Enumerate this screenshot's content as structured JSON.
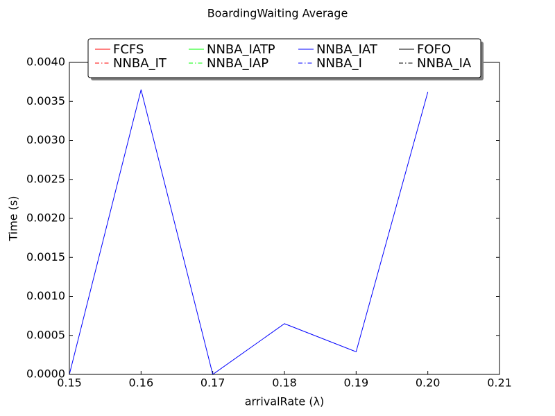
{
  "chart_data": {
    "type": "line",
    "title": "BoardingWaiting Average",
    "xlabel": "arrivalRate (λ)",
    "ylabel": "Time (s)",
    "x": [
      0.15,
      0.16,
      0.17,
      0.18,
      0.19,
      0.2
    ],
    "series": [
      {
        "name": "FCFS",
        "color": "#ff0000",
        "linestyle": "solid",
        "values": [
          null,
          null,
          null,
          null,
          null,
          null
        ]
      },
      {
        "name": "NNBA_IT",
        "color": "#ff0000",
        "linestyle": "dashdot",
        "values": [
          null,
          null,
          null,
          null,
          null,
          null
        ]
      },
      {
        "name": "NNBA_IATP",
        "color": "#00ff00",
        "linestyle": "solid",
        "values": [
          null,
          null,
          null,
          null,
          null,
          null
        ]
      },
      {
        "name": "NNBA_IAP",
        "color": "#00ff00",
        "linestyle": "dashdot",
        "values": [
          null,
          null,
          null,
          null,
          null,
          null
        ]
      },
      {
        "name": "NNBA_IAT",
        "color": "#0000ff",
        "linestyle": "solid",
        "values": [
          0,
          0.00365,
          0,
          0.00065,
          0.00029,
          0.00362
        ]
      },
      {
        "name": "NNBA_I",
        "color": "#0000ff",
        "linestyle": "dashdot",
        "values": [
          null,
          null,
          null,
          null,
          null,
          null
        ]
      },
      {
        "name": "FOFO",
        "color": "#000000",
        "linestyle": "solid",
        "values": [
          null,
          null,
          null,
          null,
          null,
          null
        ]
      },
      {
        "name": "NNBA_IA",
        "color": "#000000",
        "linestyle": "dashdot",
        "values": [
          null,
          null,
          null,
          null,
          null,
          null
        ]
      }
    ],
    "xlim": [
      0.15,
      0.21
    ],
    "xticks": [
      0.15,
      0.16,
      0.17,
      0.18,
      0.19,
      {
        "value": 0.2,
        "label": "0.20"
      },
      0.21
    ],
    "ylim": [
      0,
      0.004
    ],
    "yticks": [
      {
        "value": 0,
        "label": "0.0000"
      },
      {
        "value": 0.0005,
        "label": "0.0005"
      },
      {
        "value": 0.001,
        "label": "0.0010"
      },
      {
        "value": 0.0015,
        "label": "0.0015"
      },
      {
        "value": 0.002,
        "label": "0.0020"
      },
      {
        "value": 0.0025,
        "label": "0.0025"
      },
      {
        "value": 0.003,
        "label": "0.0030"
      },
      {
        "value": 0.0035,
        "label": "0.0035"
      },
      {
        "value": 0.004,
        "label": "0.0040"
      }
    ],
    "legend": "upper center",
    "grid": false
  }
}
